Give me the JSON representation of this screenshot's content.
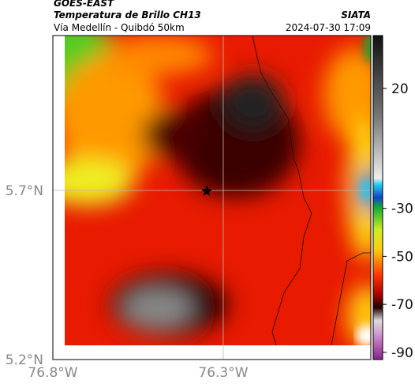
{
  "header": {
    "source": "GOES-EAST",
    "title": "Temperatura de Brillo CH13",
    "subtitle": "Vía Medellín - Quibdó 50km",
    "credit": "SIATA",
    "timestamp": "2024-07-30 17:09"
  },
  "map": {
    "xlim": [
      -76.8,
      -75.867
    ],
    "ylim": [
      5.2,
      6.158
    ],
    "xticks": [
      {
        "value": -76.8,
        "label": "76.8°W"
      },
      {
        "value": -76.3,
        "label": "76.3°W"
      }
    ],
    "yticks": [
      {
        "value": 5.2,
        "label": "5.2°N"
      },
      {
        "value": 5.7,
        "label": "5.7°N"
      }
    ],
    "grid": true
  },
  "colorbar": {
    "lim": [
      -93,
      42
    ],
    "ticks": [
      20,
      -30,
      -50,
      -70,
      -90
    ]
  }
}
